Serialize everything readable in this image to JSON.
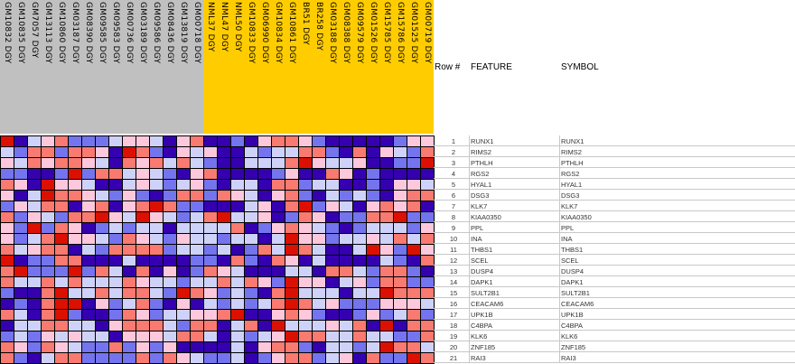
{
  "chart_data": {
    "type": "heatmap",
    "color_scale": {
      "-3": "#3500b0",
      "-2": "#7474ee",
      "-1": "#cfd2f8",
      "1": "#fdc8dc",
      "2": "#f97a70",
      "3": "#dc1000"
    },
    "groups": [
      {
        "color": "#c0c0c0",
        "count": 15
      },
      {
        "color": "#ffcc00",
        "count": 17
      }
    ],
    "columns": [
      "GM10832 DGY",
      "GM10835 DGY",
      "GM7057 DGY",
      "GM13113 DGY",
      "GM10860 DGY",
      "GM03187 DGY",
      "GM08390 DGY",
      "GM09585 DGY",
      "GM09583 DGY",
      "GM00736 DGY",
      "GM03189 DGY",
      "GM09586 DGY",
      "GM08436 DGY",
      "GM13819 DGY",
      "GM00718 DGY",
      "NML37 DGY",
      "NML47 DGY",
      "NML50 DGY",
      "GM10833 DGY",
      "GM06990 DGY",
      "GM10834 DGY",
      "GM10861 DGY",
      "BR51 DGY",
      "BR258 DGY",
      "GM03188 DGY",
      "GM08388 DGY",
      "GM09579 DGY",
      "GM01526 DGY",
      "GM15785 DGY",
      "GM15786 DGY",
      "GM01525 DGY",
      "GM00719 DGY"
    ],
    "values": [
      [
        3,
        -3,
        -1,
        1,
        2,
        -2,
        -2,
        -2,
        -1,
        1,
        1,
        -1,
        -3,
        1,
        2,
        -3,
        -3,
        -2,
        -3,
        1,
        2,
        2,
        1,
        -2,
        -3,
        -3,
        -3,
        -3,
        -3,
        -2,
        1,
        1
      ],
      [
        -1,
        -2,
        2,
        2,
        -2,
        2,
        2,
        1,
        -3,
        3,
        2,
        -2,
        -3,
        1,
        -1,
        1,
        -3,
        -3,
        -1,
        -2,
        -1,
        -1,
        2,
        2,
        -2,
        -3,
        2,
        -3,
        1,
        -1,
        -2,
        2
      ],
      [
        1,
        -1,
        2,
        1,
        2,
        2,
        1,
        -1,
        -3,
        2,
        1,
        2,
        -1,
        2,
        -1,
        -2,
        -3,
        -3,
        -1,
        -1,
        -1,
        2,
        3,
        1,
        -1,
        -1,
        1,
        -3,
        -3,
        -2,
        -2,
        3
      ],
      [
        -2,
        -2,
        -3,
        -3,
        -2,
        3,
        -2,
        2,
        2,
        -1,
        1,
        -1,
        -2,
        -3,
        1,
        2,
        -3,
        -3,
        -3,
        -3,
        -2,
        1,
        -3,
        -3,
        2,
        1,
        -3,
        -2,
        -3,
        -3,
        -3,
        -3
      ],
      [
        2,
        1,
        -3,
        3,
        1,
        1,
        -1,
        -3,
        -3,
        -1,
        1,
        -1,
        -2,
        -1,
        1,
        -2,
        -3,
        -1,
        -1,
        -3,
        2,
        2,
        -2,
        -1,
        -1,
        -3,
        -3,
        -2,
        -3,
        1,
        1,
        -1
      ],
      [
        1,
        -3,
        -1,
        3,
        2,
        2,
        1,
        -1,
        -2,
        1,
        -2,
        -3,
        -2,
        2,
        2,
        -2,
        2,
        1,
        -1,
        -3,
        1,
        2,
        -2,
        -3,
        -1,
        -2,
        -1,
        -2,
        -3,
        1,
        2,
        2
      ],
      [
        -2,
        1,
        -1,
        2,
        2,
        -3,
        1,
        2,
        -3,
        1,
        2,
        3,
        2,
        -2,
        -2,
        -3,
        -3,
        -3,
        -1,
        1,
        -3,
        2,
        3,
        -2,
        1,
        -1,
        -3,
        1,
        2,
        1,
        2,
        -3
      ],
      [
        2,
        -2,
        1,
        -1,
        -2,
        2,
        2,
        3,
        1,
        -1,
        3,
        1,
        -1,
        -2,
        -1,
        2,
        3,
        -1,
        -1,
        1,
        -3,
        -2,
        2,
        1,
        -3,
        -2,
        -2,
        2,
        2,
        3,
        -2,
        -2
      ],
      [
        1,
        -2,
        3,
        -2,
        2,
        1,
        -3,
        -2,
        -1,
        -2,
        -1,
        -1,
        -3,
        -1,
        -1,
        -1,
        -1,
        2,
        -3,
        -2,
        1,
        2,
        1,
        -1,
        -2,
        -3,
        -2,
        -1,
        -1,
        -1,
        -2,
        1
      ],
      [
        1,
        -2,
        -1,
        2,
        3,
        1,
        1,
        -1,
        -2,
        2,
        1,
        -1,
        -2,
        1,
        -1,
        -1,
        -2,
        -1,
        -1,
        -3,
        -1,
        3,
        1,
        1,
        -2,
        -1,
        -1,
        1,
        -1,
        2,
        -1,
        2
      ],
      [
        2,
        -1,
        1,
        2,
        2,
        -3,
        -1,
        -2,
        2,
        2,
        2,
        2,
        -2,
        -1,
        -1,
        -2,
        -1,
        -3,
        -2,
        2,
        -1,
        3,
        2,
        -1,
        -3,
        -3,
        -1,
        3,
        1,
        -2,
        3,
        1
      ],
      [
        3,
        -3,
        -2,
        -2,
        2,
        2,
        -3,
        -3,
        -3,
        -1,
        -3,
        -3,
        -3,
        -3,
        -2,
        -2,
        -3,
        2,
        -2,
        -3,
        2,
        1,
        -3,
        -1,
        -3,
        -3,
        -3,
        -3,
        -1,
        -2,
        -3,
        2
      ],
      [
        2,
        3,
        -2,
        -2,
        -2,
        3,
        -2,
        2,
        -1,
        -3,
        2,
        -3,
        1,
        -3,
        -2,
        2,
        1,
        -1,
        -3,
        -3,
        -3,
        -1,
        -1,
        -3,
        2,
        2,
        -1,
        -2,
        2,
        2,
        -2,
        -3
      ],
      [
        2,
        -1,
        -1,
        2,
        -1,
        2,
        -1,
        -1,
        -1,
        2,
        1,
        -1,
        -1,
        -2,
        -1,
        -1,
        2,
        -1,
        2,
        1,
        -2,
        3,
        1,
        1,
        -3,
        -1,
        1,
        -2,
        2,
        2,
        -2,
        -2
      ],
      [
        -2,
        -3,
        -3,
        2,
        3,
        -1,
        -1,
        2,
        -1,
        2,
        2,
        -1,
        -2,
        3,
        2,
        1,
        -2,
        -1,
        -2,
        -3,
        2,
        3,
        -1,
        -1,
        -1,
        -3,
        -1,
        -1,
        3,
        2,
        2,
        2
      ],
      [
        -3,
        -2,
        -3,
        2,
        3,
        3,
        -3,
        1,
        -2,
        -1,
        2,
        -2,
        -3,
        1,
        -3,
        -1,
        -2,
        -1,
        -2,
        -1,
        2,
        3,
        2,
        -1,
        1,
        -2,
        -2,
        -2,
        1,
        1,
        1,
        -1
      ],
      [
        2,
        -1,
        -3,
        2,
        3,
        -2,
        -3,
        -3,
        -2,
        2,
        1,
        -2,
        -1,
        -1,
        1,
        1,
        2,
        3,
        -3,
        -3,
        1,
        2,
        1,
        -2,
        -3,
        -3,
        -2,
        1,
        -2,
        -1,
        2,
        -2
      ],
      [
        -3,
        -1,
        -1,
        2,
        2,
        -1,
        -1,
        -3,
        1,
        2,
        2,
        2,
        -1,
        -2,
        2,
        2,
        -3,
        -1,
        2,
        -3,
        3,
        -1,
        -1,
        -1,
        1,
        -1,
        2,
        -3,
        3,
        -3,
        2,
        2
      ],
      [
        -2,
        -1,
        -2,
        1,
        -1,
        1,
        -1,
        -1,
        -3,
        1,
        1,
        1,
        -1,
        2,
        2,
        -1,
        -3,
        -1,
        -2,
        -1,
        1,
        3,
        2,
        2,
        -1,
        -1,
        2,
        -1,
        -1,
        -2,
        -2,
        2
      ],
      [
        2,
        1,
        -2,
        2,
        1,
        -1,
        -2,
        -2,
        2,
        -2,
        1,
        -2,
        1,
        -3,
        -3,
        -3,
        -3,
        -1,
        -3,
        1,
        2,
        2,
        -2,
        -3,
        -1,
        -1,
        -2,
        -1,
        3,
        2,
        2,
        -1
      ],
      [
        2,
        -2,
        -3,
        -1,
        2,
        2,
        -2,
        -2,
        -2,
        -2,
        2,
        -2,
        2,
        1,
        -1,
        -2,
        -2,
        -1,
        -3,
        -2,
        1,
        2,
        2,
        -2,
        -1,
        1,
        -3,
        2,
        -2,
        -2,
        3,
        2
      ]
    ]
  },
  "table": {
    "headers": {
      "row": "Row #",
      "feature": "FEATURE",
      "symbol": "SYMBOL"
    },
    "rows": [
      {
        "num": "1",
        "feature": "RUNX1",
        "symbol": "RUNX1"
      },
      {
        "num": "2",
        "feature": "RIMS2",
        "symbol": "RIMS2"
      },
      {
        "num": "3",
        "feature": "PTHLH",
        "symbol": "PTHLH"
      },
      {
        "num": "4",
        "feature": "RGS2",
        "symbol": "RGS2"
      },
      {
        "num": "5",
        "feature": "HYAL1",
        "symbol": "HYAL1"
      },
      {
        "num": "6",
        "feature": "DSG3",
        "symbol": "DSG3"
      },
      {
        "num": "7",
        "feature": "KLK7",
        "symbol": "KLK7"
      },
      {
        "num": "8",
        "feature": "KIAA0350",
        "symbol": "KIAA0350"
      },
      {
        "num": "9",
        "feature": "PPL",
        "symbol": "PPL"
      },
      {
        "num": "10",
        "feature": "INA",
        "symbol": "INA"
      },
      {
        "num": "11",
        "feature": "THBS1",
        "symbol": "THBS1"
      },
      {
        "num": "12",
        "feature": "SCEL",
        "symbol": "SCEL"
      },
      {
        "num": "13",
        "feature": "DUSP4",
        "symbol": "DUSP4"
      },
      {
        "num": "14",
        "feature": "DAPK1",
        "symbol": "DAPK1"
      },
      {
        "num": "15",
        "feature": "SULT2B1",
        "symbol": "SULT2B1"
      },
      {
        "num": "16",
        "feature": "CEACAM6",
        "symbol": "CEACAM6"
      },
      {
        "num": "17",
        "feature": "UPK1B",
        "symbol": "UPK1B"
      },
      {
        "num": "18",
        "feature": "C4BPA",
        "symbol": "C4BPA"
      },
      {
        "num": "19",
        "feature": "KLK6",
        "symbol": "KLK6"
      },
      {
        "num": "20",
        "feature": "ZNF185",
        "symbol": "ZNF185"
      },
      {
        "num": "21",
        "feature": "RAI3",
        "symbol": "RAI3"
      }
    ]
  }
}
